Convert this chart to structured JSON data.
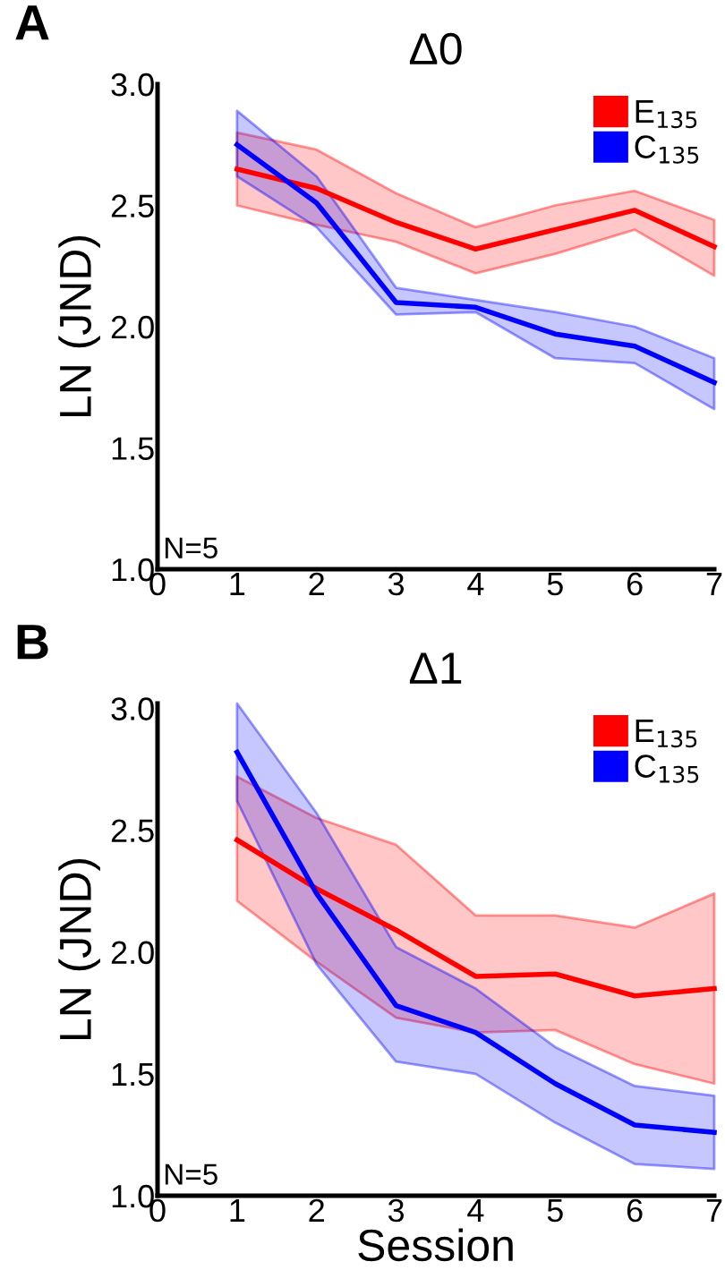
{
  "chart_data": [
    {
      "type": "line",
      "title": "Δ0",
      "ylabel": "LN (JND)",
      "x": [
        1,
        2,
        3,
        4,
        5,
        6,
        7
      ],
      "xlim": [
        0,
        7
      ],
      "xticks": [
        0,
        1,
        2,
        3,
        4,
        5,
        6,
        7
      ],
      "ylim": [
        1.0,
        3.0
      ],
      "yticks": [
        {
          "value": 1.0,
          "label": "1.0"
        },
        {
          "value": 1.5,
          "label": "1.5"
        },
        {
          "value": 2.0,
          "label": "2.0"
        },
        {
          "value": 2.5,
          "label": "2.5"
        },
        {
          "value": 3.0,
          "label": "3.0"
        }
      ],
      "legend": "top right",
      "grid": false,
      "annotations": [
        "A",
        "N=5"
      ],
      "series": [
        {
          "name": "E$_{135}$",
          "color": "#ff0000",
          "values": [
            2.65,
            2.57,
            2.43,
            2.32,
            2.4,
            2.48,
            2.33
          ],
          "lower": [
            2.5,
            2.42,
            2.35,
            2.22,
            2.3,
            2.4,
            2.21
          ],
          "upper": [
            2.8,
            2.73,
            2.55,
            2.41,
            2.5,
            2.56,
            2.44
          ]
        },
        {
          "name": "C$_{135}$",
          "color": "#0000ff",
          "values": [
            2.75,
            2.51,
            2.1,
            2.08,
            1.97,
            1.92,
            1.77
          ],
          "lower": [
            2.62,
            2.41,
            2.05,
            2.06,
            1.87,
            1.85,
            1.66
          ],
          "upper": [
            2.89,
            2.62,
            2.16,
            2.11,
            2.06,
            2.0,
            1.87
          ]
        }
      ]
    },
    {
      "type": "line",
      "title": "Δ1",
      "ylabel": "LN (JND)",
      "xlabel": "Session",
      "x": [
        1,
        2,
        3,
        4,
        5,
        6,
        7
      ],
      "xlim": [
        0,
        7
      ],
      "xticks": [
        0,
        1,
        2,
        3,
        4,
        5,
        6,
        7
      ],
      "ylim": [
        1.0,
        3.02
      ],
      "yticks": [
        {
          "value": 1.0,
          "label": "1.0"
        },
        {
          "value": 1.5,
          "label": "1.5"
        },
        {
          "value": 2.0,
          "label": "2.0"
        },
        {
          "value": 2.5,
          "label": "2.5"
        },
        {
          "value": 3.0,
          "label": "3.0"
        }
      ],
      "legend": "top right",
      "grid": false,
      "annotations": [
        "B",
        "N=5"
      ],
      "series": [
        {
          "name": "E$_{135}$",
          "color": "#ff0000",
          "values": [
            2.46,
            2.26,
            2.09,
            1.9,
            1.91,
            1.82,
            1.85
          ],
          "lower": [
            2.21,
            1.96,
            1.73,
            1.67,
            1.68,
            1.54,
            1.46
          ],
          "upper": [
            2.72,
            2.55,
            2.44,
            2.15,
            2.15,
            2.1,
            2.24
          ]
        },
        {
          "name": "C$_{135}$",
          "color": "#0000ff",
          "values": [
            2.82,
            2.24,
            1.78,
            1.67,
            1.46,
            1.29,
            1.26
          ],
          "lower": [
            2.62,
            1.95,
            1.55,
            1.5,
            1.3,
            1.13,
            1.11
          ],
          "upper": [
            3.02,
            2.57,
            2.02,
            1.85,
            1.61,
            1.45,
            1.41
          ]
        }
      ]
    }
  ]
}
